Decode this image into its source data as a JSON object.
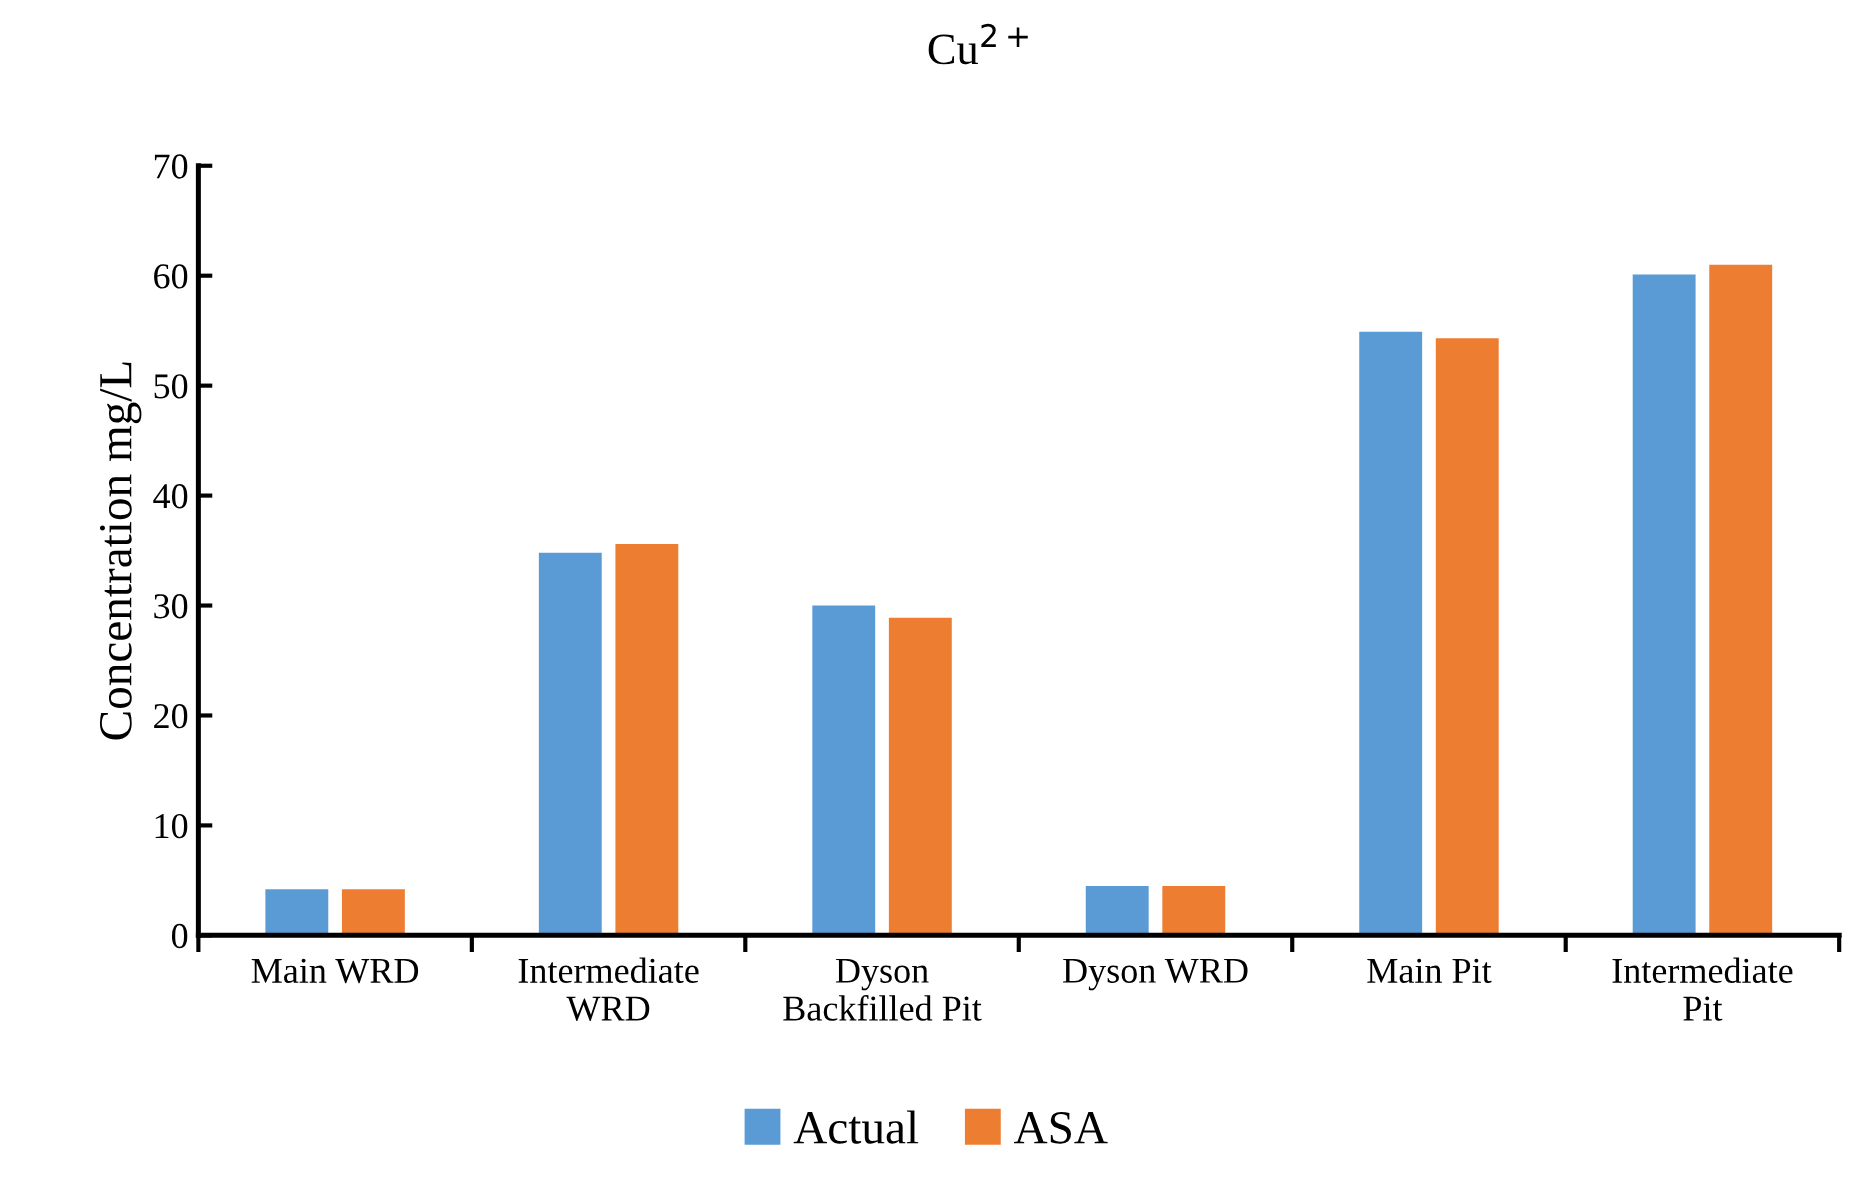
{
  "chart_data": {
    "type": "bar",
    "title": "Cu$^{2+}$",
    "ylabel": "Concentration mg/L",
    "categories": [
      "Main WRD",
      "Intermediate\nWRD",
      "Dyson\nBackfilled Pit",
      "Dyson WRD",
      "Main Pit",
      "Intermediate\nPit"
    ],
    "series": [
      {
        "name": "Actual",
        "color": "#5b9bd5",
        "values": [
          4.2,
          34.8,
          30.0,
          4.5,
          54.9,
          60.1
        ]
      },
      {
        "name": "ASA",
        "color": "#ed7d31",
        "values": [
          4.2,
          35.6,
          28.9,
          4.5,
          54.3,
          61.0
        ]
      }
    ],
    "ylim": [
      0,
      70
    ],
    "yticks": [
      0,
      10,
      20,
      30,
      40,
      50,
      60,
      70
    ],
    "grid": false,
    "legend": "bottom"
  }
}
